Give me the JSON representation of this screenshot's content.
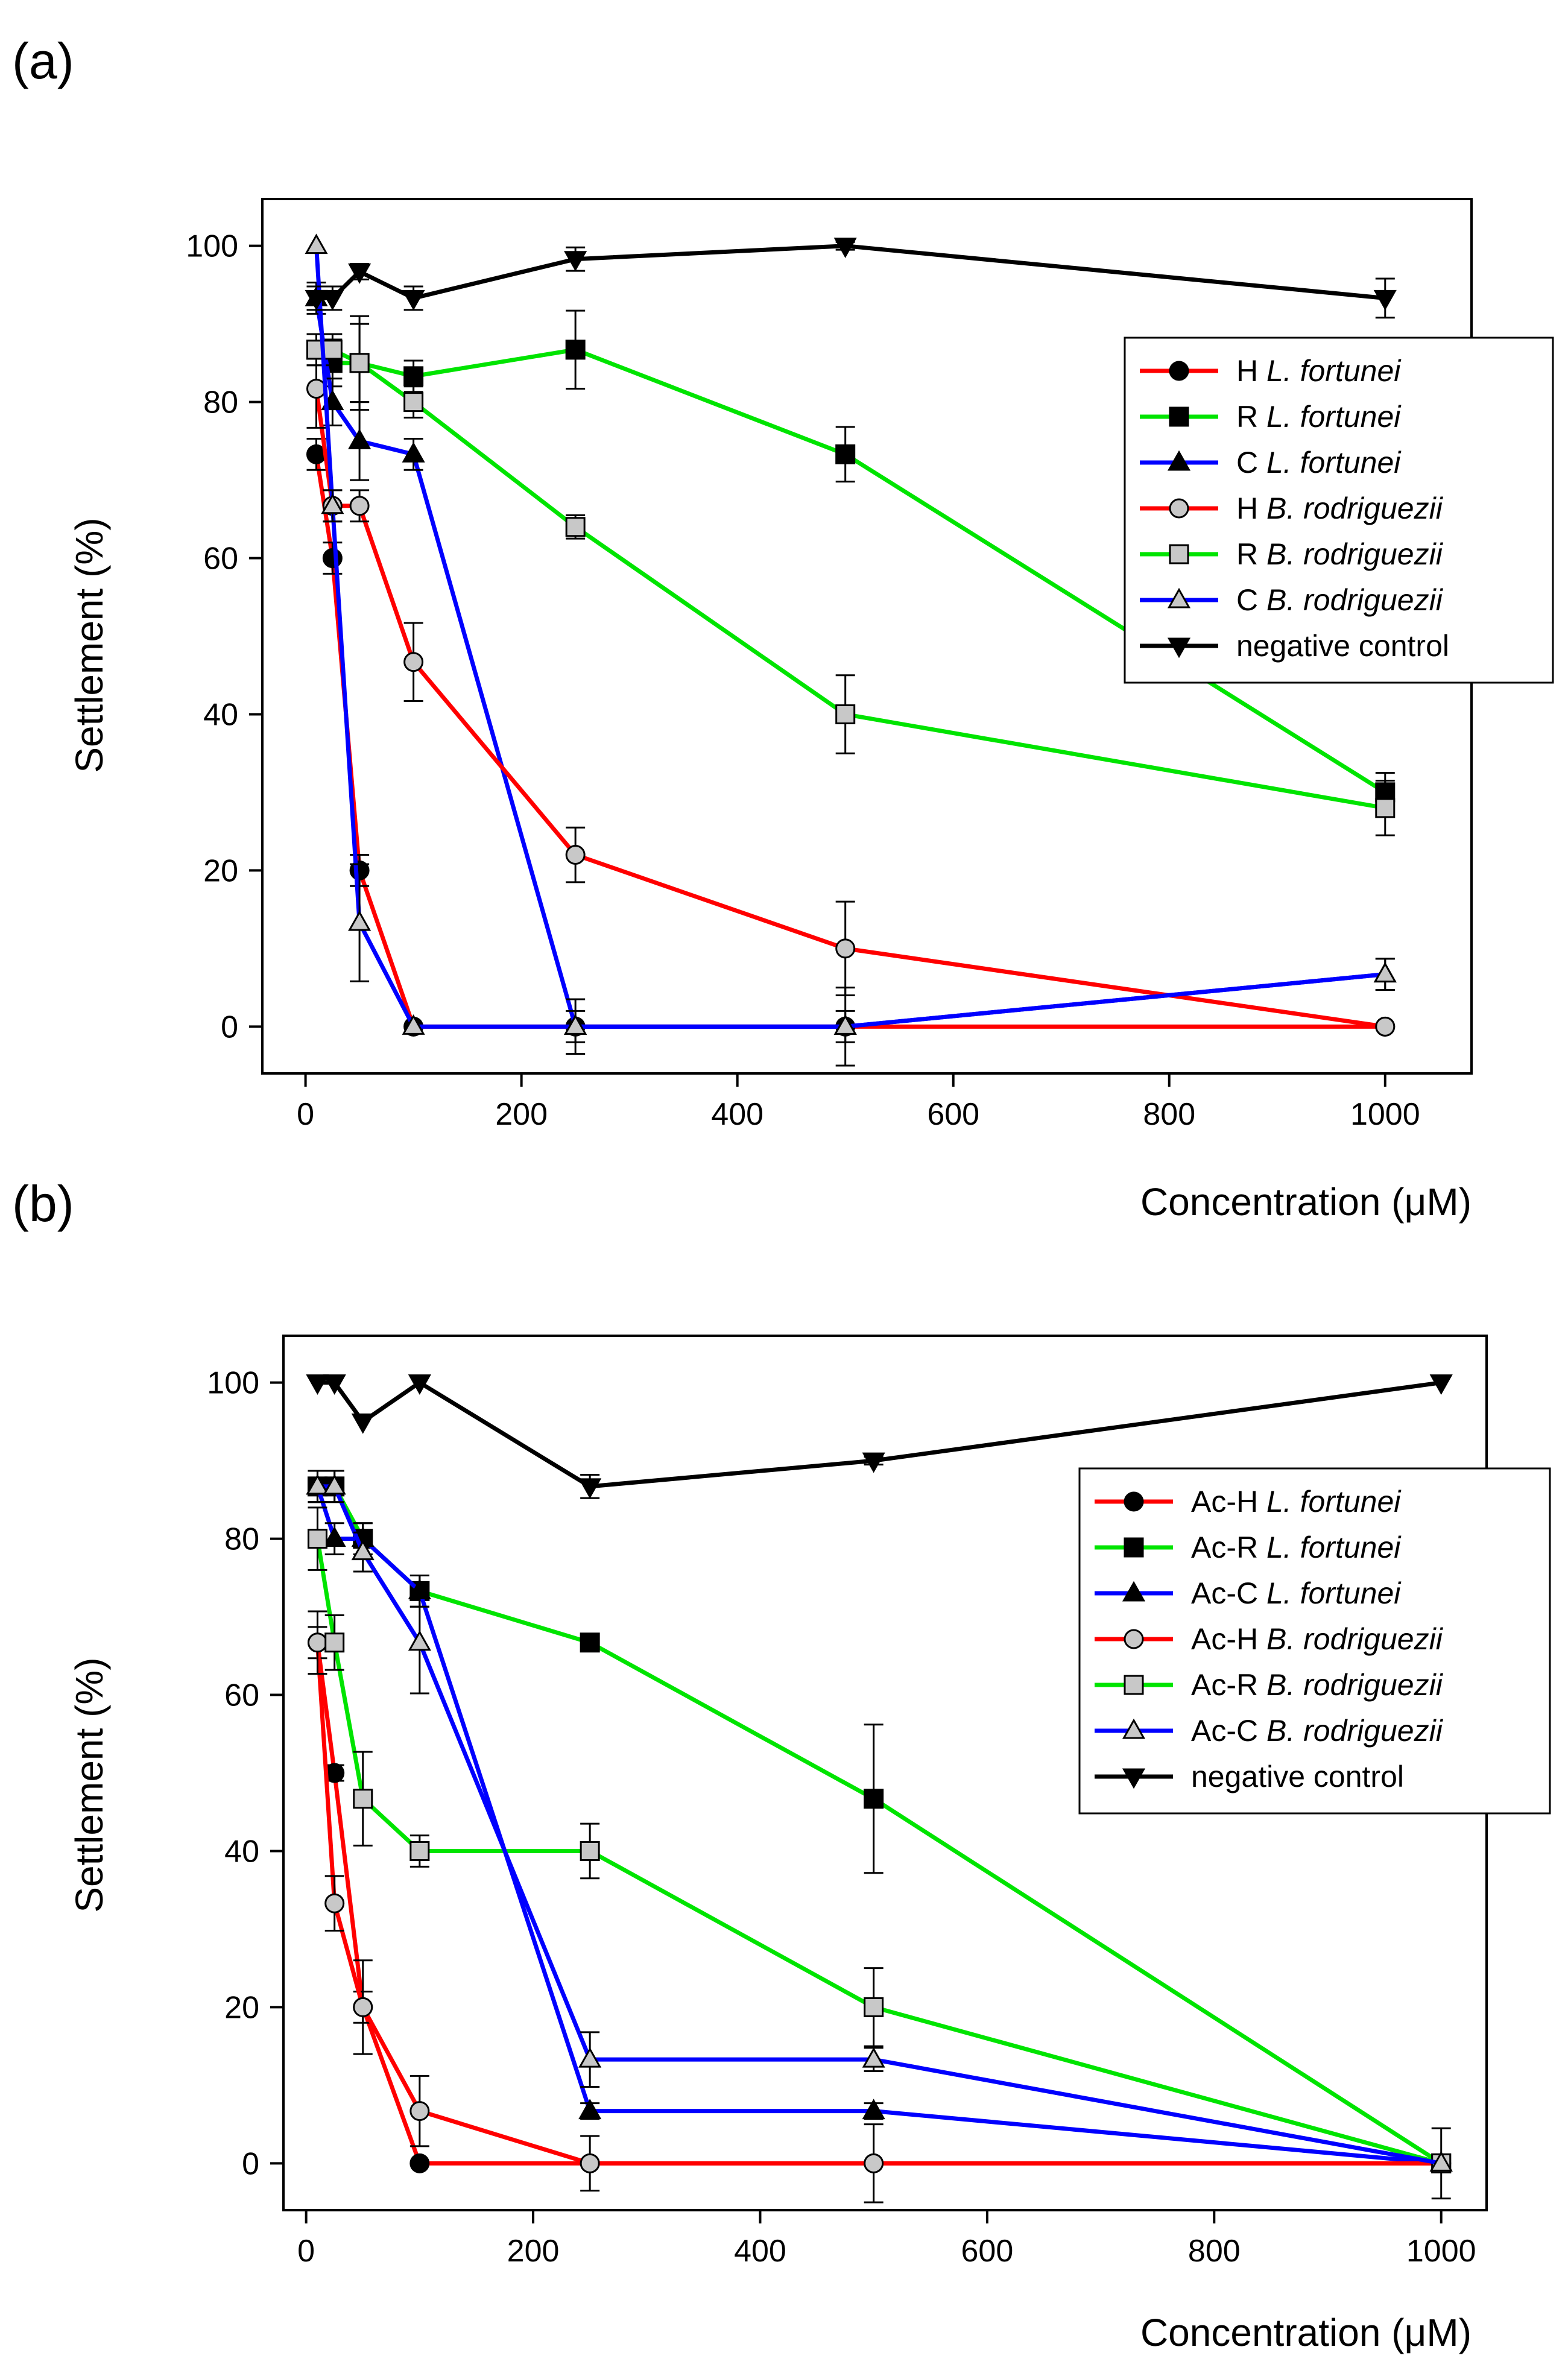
{
  "colors": {
    "red": "#ff0000",
    "green": "#00e400",
    "blue": "#0000ff",
    "black": "#000000",
    "filled_marker": "#000000",
    "hollow_marker": "#c8c8c8"
  },
  "chart_data": [
    {
      "panel_label": "(a)",
      "type": "line",
      "xlabel": "Concentration (μM)",
      "ylabel": "Settlement (%)",
      "xlim": [
        -40,
        1080
      ],
      "ylim": [
        -6,
        106
      ],
      "xticks": [
        0,
        200,
        400,
        600,
        800,
        1000
      ],
      "yticks": [
        0,
        20,
        40,
        60,
        80,
        100
      ],
      "grid": false,
      "legend_position": "right-upper",
      "series": [
        {
          "name_prefix": "H ",
          "name_italic": "L. fortunei",
          "color": "red",
          "marker": "circle",
          "fill": "filled_marker",
          "x": [
            10,
            25,
            50,
            100,
            250,
            500,
            1000
          ],
          "y": [
            73.3,
            60,
            20,
            0,
            0,
            0,
            0
          ],
          "err": [
            2,
            2,
            2,
            0,
            0,
            0,
            0
          ]
        },
        {
          "name_prefix": "R ",
          "name_italic": "L. fortunei",
          "color": "green",
          "marker": "square",
          "fill": "filled_marker",
          "x": [
            10,
            25,
            50,
            100,
            250,
            500,
            1000
          ],
          "y": [
            86.7,
            85,
            85,
            83.3,
            86.7,
            73.3,
            30
          ],
          "err": [
            2,
            3,
            5,
            2,
            5,
            3.5,
            2.5
          ]
        },
        {
          "name_prefix": "C ",
          "name_italic": "L. fortunei",
          "color": "blue",
          "marker": "triangle-up",
          "fill": "filled_marker",
          "x": [
            10,
            25,
            50,
            100,
            250,
            500,
            1000
          ],
          "y": [
            93.3,
            80,
            75,
            73.3,
            0,
            0,
            6.7
          ],
          "err": [
            2,
            3,
            5,
            2,
            2,
            2,
            2
          ]
        },
        {
          "name_prefix": "H ",
          "name_italic": "B. rodriguezii",
          "color": "red",
          "marker": "circle",
          "fill": "hollow_marker",
          "x": [
            10,
            25,
            50,
            100,
            250,
            500,
            1000
          ],
          "y": [
            81.7,
            66.7,
            66.7,
            46.7,
            22,
            10,
            0
          ],
          "err": [
            5,
            2,
            2,
            5,
            3.5,
            6,
            0
          ]
        },
        {
          "name_prefix": "R ",
          "name_italic": "B. rodriguezii",
          "color": "green",
          "marker": "square",
          "fill": "hollow_marker",
          "x": [
            10,
            25,
            50,
            100,
            250,
            500,
            1000
          ],
          "y": [
            86.7,
            86.7,
            85,
            80,
            64,
            40,
            28
          ],
          "err": [
            2,
            2,
            6,
            2,
            1.5,
            5,
            3.5
          ]
        },
        {
          "name_prefix": "C ",
          "name_italic": "B. rodriguezii",
          "color": "blue",
          "marker": "triangle-up",
          "fill": "hollow_marker",
          "x": [
            10,
            25,
            50,
            100,
            250,
            500,
            1000
          ],
          "y": [
            100,
            66.7,
            13.3,
            0,
            0,
            0,
            6.7
          ],
          "err": [
            0,
            2,
            7.5,
            0,
            3.5,
            5,
            2
          ]
        },
        {
          "name_prefix": "negative control",
          "name_italic": "",
          "color": "black",
          "marker": "triangle-down",
          "fill": "filled_marker",
          "x": [
            10,
            25,
            50,
            100,
            250,
            500,
            1000
          ],
          "y": [
            93.3,
            93.3,
            96.7,
            93.3,
            98.3,
            100,
            93.3
          ],
          "err": [
            1.5,
            1.5,
            1,
            1.5,
            1.5,
            0.5,
            2.5
          ]
        }
      ]
    },
    {
      "panel_label": "(b)",
      "type": "line",
      "xlabel": "Concentration (μM)",
      "ylabel": "Settlement (%)",
      "xlim": [
        -20,
        1040
      ],
      "ylim": [
        -6,
        106
      ],
      "xticks": [
        0,
        200,
        400,
        600,
        800,
        1000
      ],
      "yticks": [
        0,
        20,
        40,
        60,
        80,
        100
      ],
      "grid": false,
      "legend_position": "right-upper",
      "series": [
        {
          "name_prefix": "Ac-H ",
          "name_italic": "L. fortunei",
          "color": "red",
          "marker": "circle",
          "fill": "filled_marker",
          "x": [
            10,
            25,
            50,
            100,
            250,
            500,
            1000
          ],
          "y": [
            66.7,
            50,
            20,
            0,
            0,
            0,
            0
          ],
          "err": [
            2,
            1,
            2,
            0,
            0,
            0,
            0
          ]
        },
        {
          "name_prefix": "Ac-R ",
          "name_italic": "L. fortunei",
          "color": "green",
          "marker": "square",
          "fill": "filled_marker",
          "x": [
            10,
            25,
            50,
            100,
            250,
            500,
            1000
          ],
          "y": [
            86.7,
            86.7,
            80,
            73.3,
            66.7,
            46.7,
            0
          ],
          "err": [
            2,
            2,
            2,
            2,
            1,
            9.5,
            0
          ]
        },
        {
          "name_prefix": "Ac-C ",
          "name_italic": "L. fortunei",
          "color": "blue",
          "marker": "triangle-up",
          "fill": "filled_marker",
          "x": [
            10,
            25,
            50,
            100,
            250,
            500,
            1000
          ],
          "y": [
            86.7,
            80,
            80,
            73.3,
            6.7,
            6.7,
            0
          ],
          "err": [
            2,
            2,
            2,
            2,
            1,
            1,
            0
          ]
        },
        {
          "name_prefix": "Ac-H ",
          "name_italic": "B. rodriguezii",
          "color": "red",
          "marker": "circle",
          "fill": "hollow_marker",
          "x": [
            10,
            25,
            50,
            100,
            250,
            500,
            1000
          ],
          "y": [
            66.7,
            33.3,
            20,
            6.7,
            0,
            0,
            0
          ],
          "err": [
            4,
            3.5,
            6,
            4.5,
            3.5,
            5,
            0
          ]
        },
        {
          "name_prefix": "Ac-R ",
          "name_italic": "B. rodriguezii",
          "color": "green",
          "marker": "square",
          "fill": "hollow_marker",
          "x": [
            10,
            25,
            50,
            100,
            250,
            500,
            1000
          ],
          "y": [
            80,
            66.7,
            46.7,
            40,
            40,
            20,
            0
          ],
          "err": [
            4,
            3.5,
            6,
            2,
            3.5,
            5,
            4.5
          ]
        },
        {
          "name_prefix": "Ac-C ",
          "name_italic": "B. rodriguezii",
          "color": "blue",
          "marker": "triangle-up",
          "fill": "hollow_marker",
          "x": [
            10,
            25,
            50,
            100,
            250,
            500,
            1000
          ],
          "y": [
            86.7,
            86.7,
            78.3,
            66.7,
            13.3,
            13.3,
            0
          ],
          "err": [
            2,
            2,
            2.5,
            6.5,
            3.5,
            1.5,
            0
          ]
        },
        {
          "name_prefix": "negative control",
          "name_italic": "",
          "color": "black",
          "marker": "triangle-down",
          "fill": "filled_marker",
          "x": [
            10,
            25,
            50,
            100,
            250,
            500,
            1000
          ],
          "y": [
            100,
            100,
            95,
            100,
            86.7,
            90,
            100
          ],
          "err": [
            0,
            0,
            0,
            0,
            1.5,
            0.5,
            0
          ]
        }
      ]
    }
  ]
}
